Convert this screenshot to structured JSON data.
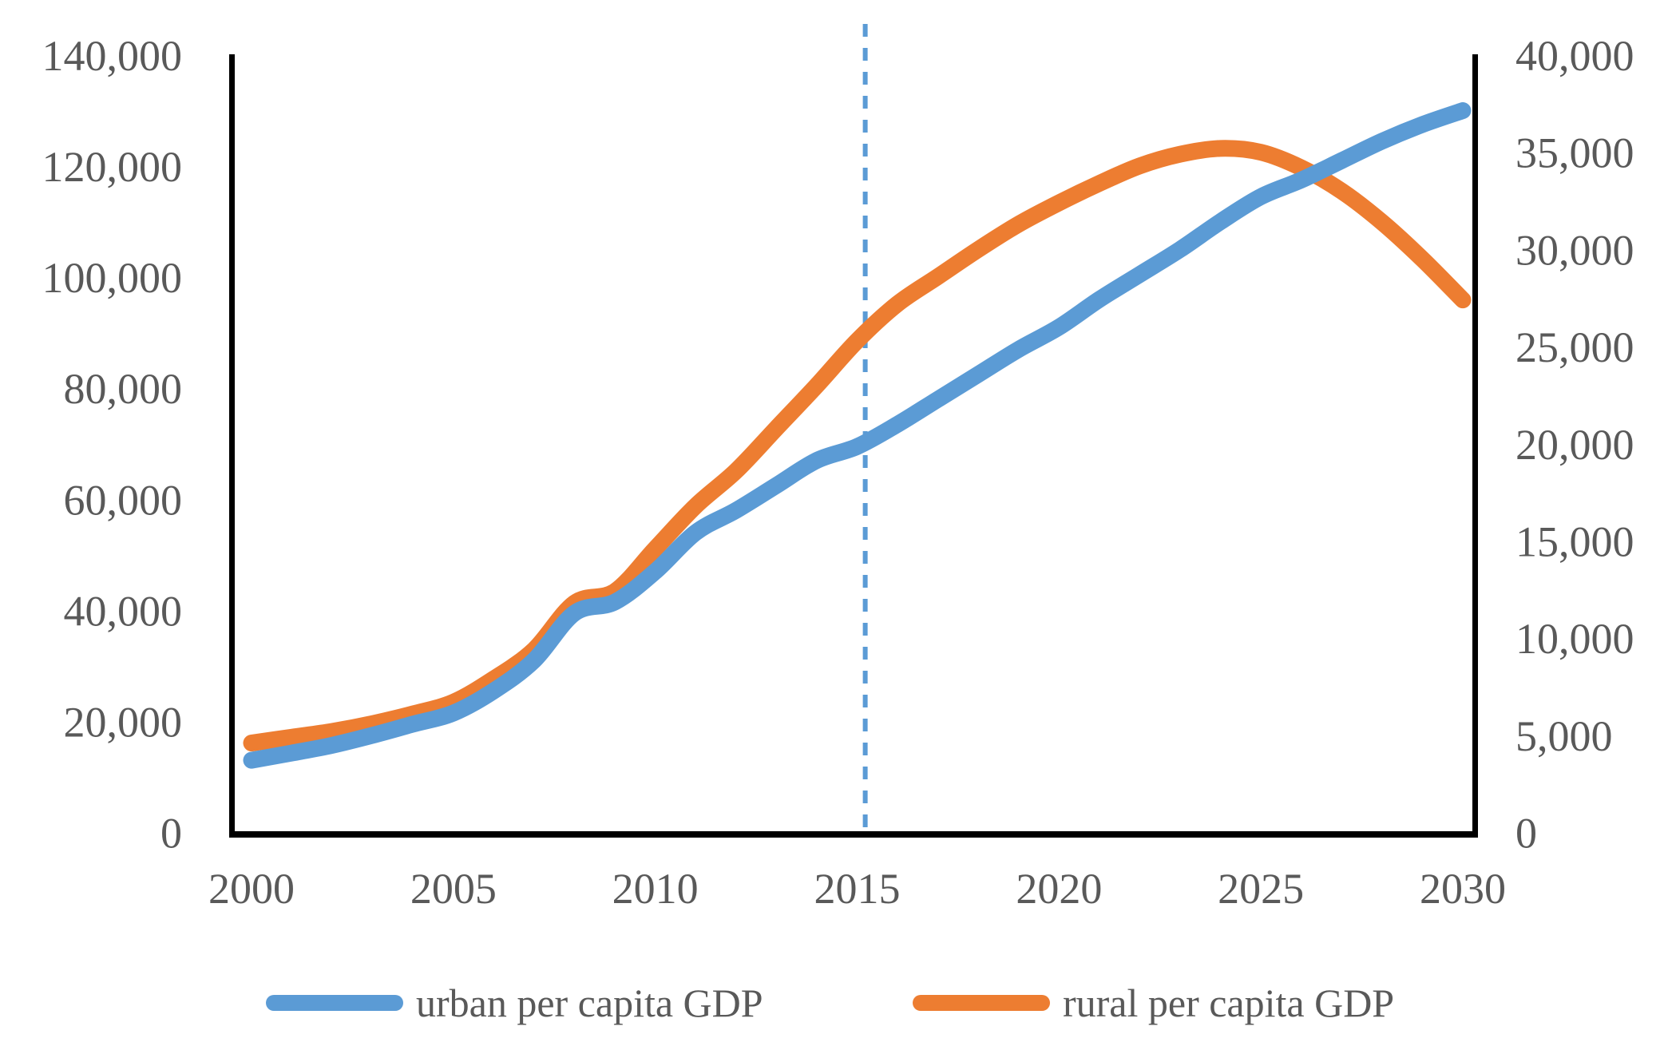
{
  "chart_data": {
    "type": "line",
    "title": "",
    "xlabel": "",
    "ylabel_left": "",
    "ylabel_right": "",
    "x": [
      2000,
      2001,
      2002,
      2003,
      2004,
      2005,
      2006,
      2007,
      2008,
      2009,
      2010,
      2011,
      2012,
      2013,
      2014,
      2015,
      2016,
      2017,
      2018,
      2019,
      2020,
      2021,
      2022,
      2023,
      2024,
      2025,
      2026,
      2027,
      2028,
      2029,
      2030
    ],
    "x_range": [
      2000,
      2030
    ],
    "x_tick_labels": [
      "2000",
      "2005",
      "2010",
      "2015",
      "2020",
      "2025",
      "2030"
    ],
    "left_axis": {
      "range": [
        0,
        140000
      ],
      "tick_labels": [
        "0",
        "20,000",
        "40,000",
        "60,000",
        "80,000",
        "100,000",
        "120,000",
        "140,000"
      ]
    },
    "right_axis": {
      "range": [
        0,
        40000
      ],
      "tick_labels": [
        "0",
        "5,000",
        "10,000",
        "15,000",
        "20,000",
        "25,000",
        "30,000",
        "35,000",
        "40,000"
      ]
    },
    "series": [
      {
        "name": "rural per capita GDP",
        "axis": "right",
        "color": "#ED7D31",
        "values": [
          4600,
          4900,
          5200,
          5600,
          6100,
          6700,
          7900,
          9400,
          11800,
          12400,
          14600,
          16800,
          18600,
          20800,
          23000,
          25300,
          27200,
          28600,
          30000,
          31300,
          32400,
          33400,
          34300,
          34900,
          35200,
          35000,
          34200,
          33000,
          31400,
          29500,
          27400
        ]
      },
      {
        "name": "urban per capita GDP",
        "axis": "left",
        "color": "#5B9BD5",
        "values": [
          13000,
          14300,
          15700,
          17500,
          19500,
          21500,
          25500,
          31000,
          39500,
          41500,
          47000,
          54000,
          58000,
          62500,
          67000,
          69500,
          73500,
          78000,
          82500,
          87000,
          91000,
          96000,
          100500,
          105000,
          110000,
          114500,
          117500,
          121000,
          124500,
          127500,
          130000
        ]
      }
    ],
    "annotations": {
      "vline": {
        "year": 2015.2,
        "style": "dashed",
        "color": "#5B9BD5"
      }
    },
    "legend_position": "bottom",
    "grid": false
  },
  "legend": {
    "urban_label": "urban per capita GDP",
    "rural_label": "rural per capita GDP"
  },
  "colors": {
    "urban_line": "#5B9BD5",
    "rural_line": "#ED7D31",
    "dashed_line": "#5B9BD5",
    "axis_line": "#000000",
    "label_text": "#595959",
    "background": "#ffffff"
  }
}
